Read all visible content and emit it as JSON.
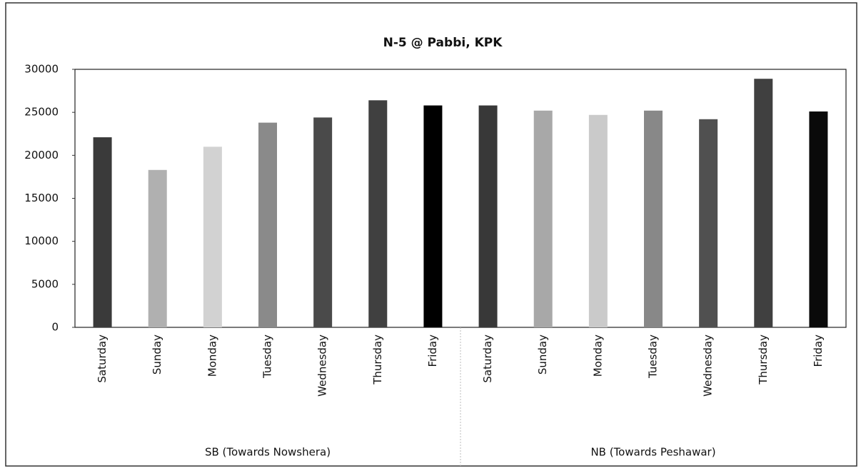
{
  "chart_data": {
    "type": "bar",
    "title": "N-5 @ Pabbi, KPK",
    "groups": [
      {
        "name": "SB (Towards Nowshera)",
        "categories": [
          "Saturday",
          "Sunday",
          "Monday",
          "Tuesday",
          "Wednesday",
          "Thursday",
          "Friday"
        ],
        "values": [
          22100,
          18300,
          21000,
          23800,
          24400,
          26400,
          25800
        ],
        "colors": [
          "#3a3a3a",
          "#b0b0b0",
          "#d2d2d2",
          "#8a8a8a",
          "#4a4a4a",
          "#404040",
          "#000000"
        ]
      },
      {
        "name": "NB (Towards Peshawar)",
        "categories": [
          "Saturday",
          "Sunday",
          "Monday",
          "Tuesday",
          "Wednesday",
          "Thursday",
          "Friday"
        ],
        "values": [
          25800,
          25200,
          24700,
          25200,
          24200,
          28900,
          25100
        ],
        "colors": [
          "#383838",
          "#a8a8a8",
          "#cacaca",
          "#888888",
          "#505050",
          "#404040",
          "#0a0a0a"
        ]
      }
    ],
    "ylim": [
      0,
      30000
    ],
    "yticks": [
      0,
      5000,
      10000,
      15000,
      20000,
      25000,
      30000
    ],
    "grid": false
  }
}
